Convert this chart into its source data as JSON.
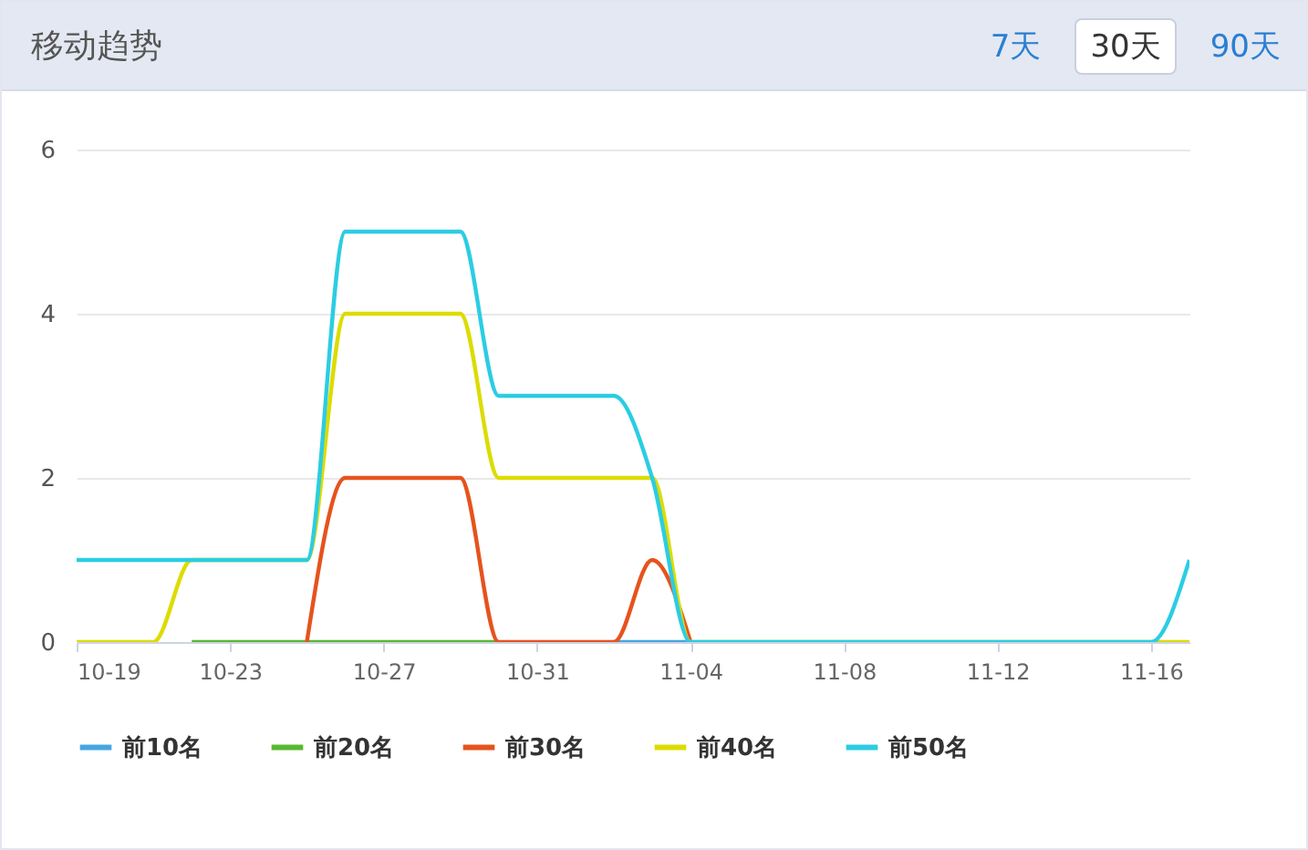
{
  "chart_data": {
    "type": "line",
    "title": "移动趋势",
    "annotations": [
      "7天",
      "30天",
      "90天"
    ],
    "x": [
      "--10-19",
      "--10-20",
      "--10-21",
      "--10-22",
      "--10-23",
      "--10-24",
      "--10-25",
      "--10-26",
      "--10-27",
      "--10-28",
      "--10-29",
      "--10-30",
      "--10-31",
      "--11-01",
      "--11-02",
      "--11-03",
      "--11-04",
      "--11-05",
      "--11-06",
      "--11-07",
      "--11-08",
      "--11-09",
      "--11-10",
      "--11-11",
      "--11-12",
      "--11-13",
      "--11-14",
      "--11-15",
      "--11-16",
      "--11-17"
    ],
    "series": [
      {
        "name": "前10名",
        "color": "#45a6e0",
        "values": [
          null,
          null,
          null,
          null,
          null,
          null,
          null,
          null,
          null,
          null,
          null,
          null,
          null,
          null,
          0,
          0,
          0,
          null,
          null,
          null,
          null,
          null,
          null,
          null,
          null,
          null,
          null,
          null,
          null,
          null
        ]
      },
      {
        "name": "前20名",
        "color": "#58b92d",
        "values": [
          null,
          null,
          null,
          0,
          0,
          0,
          0,
          0,
          0,
          0,
          0,
          0,
          null,
          null,
          null,
          null,
          null,
          null,
          null,
          null,
          null,
          null,
          null,
          null,
          null,
          null,
          null,
          null,
          null,
          null
        ]
      },
      {
        "name": "前30名",
        "color": "#e6531d",
        "values": [
          null,
          null,
          null,
          null,
          null,
          null,
          0,
          2,
          2,
          2,
          2,
          0,
          0,
          0,
          0,
          1,
          0,
          null,
          null,
          null,
          null,
          null,
          null,
          null,
          null,
          null,
          null,
          null,
          null,
          null
        ]
      },
      {
        "name": "前40名",
        "color": "#dcdc00",
        "values": [
          0,
          0,
          0,
          1,
          null,
          null,
          1,
          4,
          4,
          4,
          4,
          2,
          2,
          2,
          2,
          2,
          0,
          null,
          null,
          null,
          null,
          null,
          null,
          null,
          null,
          null,
          null,
          null,
          0,
          0
        ]
      },
      {
        "name": "前50名",
        "color": "#2bcde3",
        "values": [
          1,
          1,
          1,
          1,
          1,
          1,
          1,
          5,
          5,
          5,
          5,
          3,
          3,
          3,
          3,
          2,
          0,
          0,
          0,
          0,
          0,
          0,
          0,
          0,
          0,
          0,
          0,
          0,
          0,
          1
        ]
      }
    ],
    "xlim": [
      "--10-19",
      "--11-17"
    ],
    "xticks": [
      {
        "value": "--10-19",
        "label": "10-19"
      },
      {
        "value": "--10-23",
        "label": "10-23"
      },
      {
        "value": "--10-27",
        "label": "10-27"
      },
      {
        "value": "--10-31",
        "label": "10-31"
      },
      {
        "value": "--11-04",
        "label": "11-04"
      },
      {
        "value": "--11-08",
        "label": "11-08"
      },
      {
        "value": "--11-12",
        "label": "11-12"
      },
      {
        "value": "--11-16",
        "label": "11-16"
      }
    ],
    "ylim": [
      0,
      6
    ],
    "yticks": [
      0,
      2,
      4,
      6
    ],
    "grid": "y",
    "legend": "bottom",
    "line_style": "solid"
  }
}
